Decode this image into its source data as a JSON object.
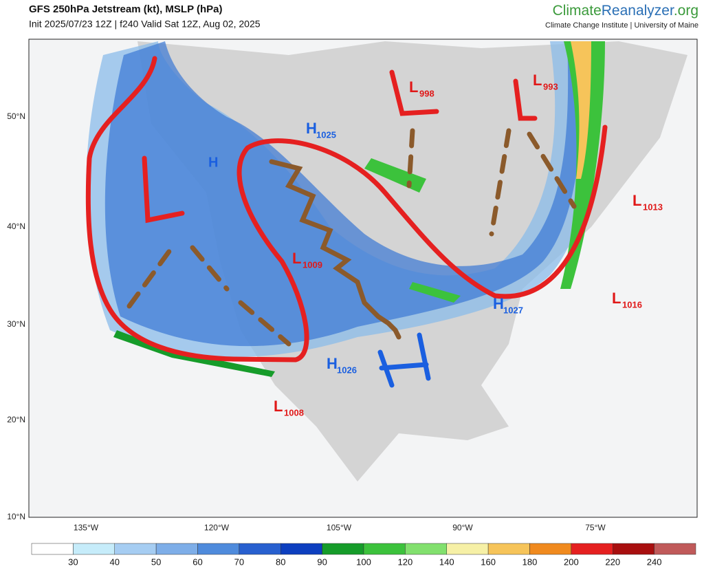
{
  "header": {
    "title": "GFS 250hPa Jetstream (kt), MSLP (hPa)",
    "subtitle": "Init 2025/07/23 12Z | f240 Valid Sat 12Z, Aug 02, 2025",
    "brand": [
      "Climate",
      "Reanalyzer",
      ".org"
    ],
    "institution": "Climate Change Institute | University of Maine"
  },
  "map": {
    "lat_labels": [
      "50°N",
      "40°N",
      "30°N",
      "20°N",
      "10°N"
    ],
    "lon_labels": [
      "135°W",
      "120°W",
      "105°W",
      "90°W",
      "75°W"
    ],
    "pressure_systems": [
      {
        "letter": "L",
        "value": 998
      },
      {
        "letter": "L",
        "value": 993
      },
      {
        "letter": "L",
        "value": 1013
      },
      {
        "letter": "L",
        "value": 1009
      },
      {
        "letter": "L",
        "value": 1016
      },
      {
        "letter": "L",
        "value": 1008
      },
      {
        "letter": "H",
        "value": 1025
      },
      {
        "letter": "H",
        "value": 1027
      },
      {
        "letter": "H",
        "value": 1026
      }
    ]
  },
  "colorbar": {
    "ticks": [
      30,
      40,
      50,
      60,
      70,
      80,
      90,
      100,
      120,
      140,
      160,
      180,
      200,
      220,
      240
    ],
    "colors": [
      "#ffffff",
      "#c6ecfa",
      "#a6cdf2",
      "#7eaee8",
      "#4f8bdc",
      "#2860cf",
      "#0d3fbf",
      "#169c2a",
      "#3cc23c",
      "#82e06e",
      "#f6f0a6",
      "#f6c45a",
      "#f08a1e",
      "#e52020",
      "#a80f0f",
      "#c05a5a",
      "#e0b6ac"
    ]
  }
}
